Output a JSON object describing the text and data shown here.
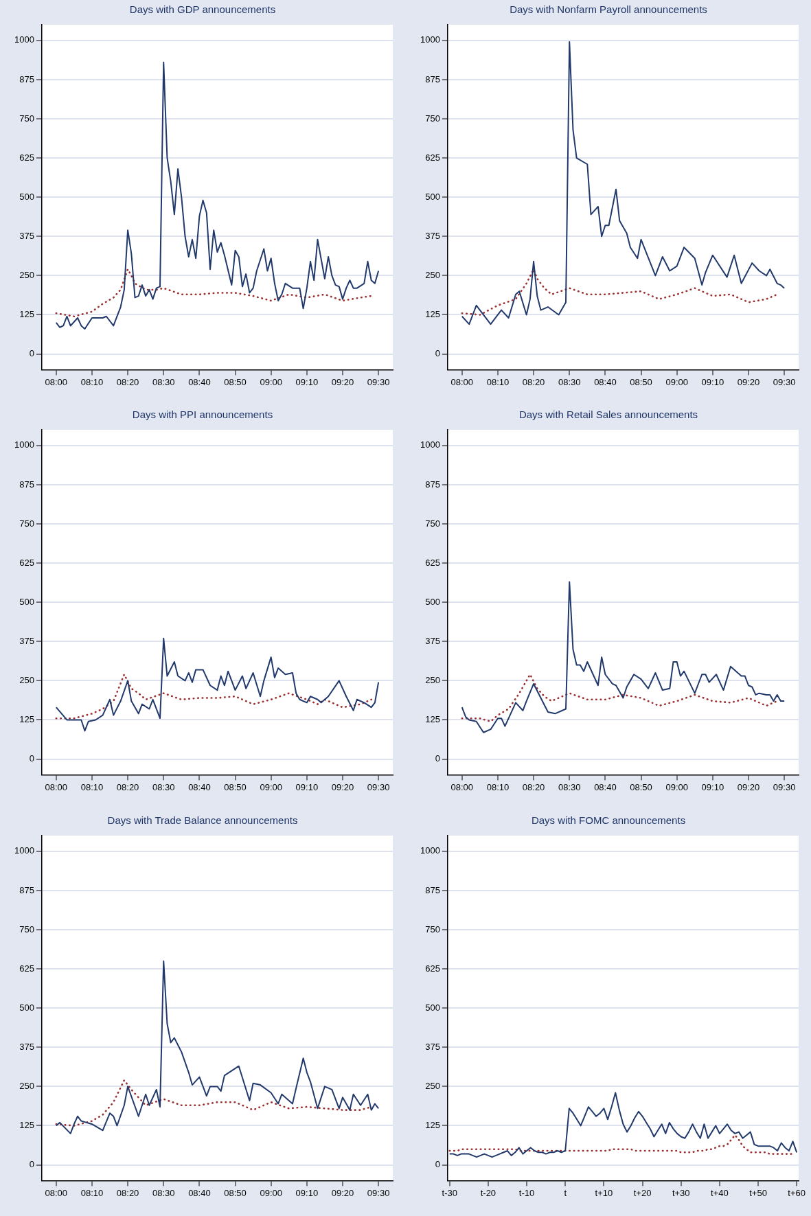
{
  "chart_data": [
    {
      "type": "line",
      "title": "Days with GDP announcements",
      "xlim": [
        7.9333,
        9.5667
      ],
      "ylim": [
        -50,
        1050
      ],
      "xticks": [
        {
          "value": 8,
          "label": "08:00"
        },
        {
          "value": 8.1667,
          "label": "08:10"
        },
        {
          "value": 8.3333,
          "label": "08:20"
        },
        {
          "value": 8.5,
          "label": "08:30"
        },
        {
          "value": 8.6667,
          "label": "08:40"
        },
        {
          "value": 8.8333,
          "label": "08:50"
        },
        {
          "value": 9,
          "label": "09:00"
        },
        {
          "value": 9.1667,
          "label": "09:10"
        },
        {
          "value": 9.3333,
          "label": "09:20"
        },
        {
          "value": 9.5,
          "label": "09:30"
        }
      ],
      "yticks": [
        0,
        125,
        250,
        375,
        500,
        625,
        750,
        875,
        1000
      ],
      "grid": "y",
      "marker": "none",
      "series": [
        {
          "color": "#22396c",
          "line_style": "solid",
          "x": [
            8,
            8.0167,
            8.0333,
            8.05,
            8.0667,
            8.1,
            8.1167,
            8.1333,
            8.1667,
            8.2167,
            8.2333,
            8.2667,
            8.3,
            8.3167,
            8.3333,
            8.35,
            8.3667,
            8.3833,
            8.4,
            8.4167,
            8.4333,
            8.45,
            8.4667,
            8.4833,
            8.5,
            8.5167,
            8.5333,
            8.55,
            8.5667,
            8.5833,
            8.6,
            8.6167,
            8.6333,
            8.65,
            8.6667,
            8.6833,
            8.7,
            8.7167,
            8.7333,
            8.75,
            8.7667,
            8.7833,
            8.8167,
            8.8333,
            8.85,
            8.8667,
            8.8833,
            8.9,
            8.9167,
            8.9333,
            8.9667,
            8.9833,
            9,
            9.0167,
            9.0333,
            9.05,
            9.0667,
            9.1,
            9.1333,
            9.15,
            9.1667,
            9.1833,
            9.2,
            9.2167,
            9.25,
            9.2667,
            9.2833,
            9.3,
            9.3167,
            9.3333,
            9.35,
            9.3667,
            9.3833,
            9.4,
            9.4333,
            9.45,
            9.4667,
            9.4833,
            9.5
          ],
          "values": [
            100,
            85,
            90,
            120,
            90,
            115,
            90,
            80,
            115,
            115,
            120,
            90,
            150,
            205,
            395,
            320,
            180,
            185,
            220,
            185,
            205,
            175,
            210,
            215,
            930,
            625,
            550,
            445,
            590,
            500,
            375,
            310,
            365,
            305,
            440,
            490,
            450,
            270,
            395,
            325,
            355,
            315,
            220,
            330,
            310,
            215,
            255,
            195,
            210,
            265,
            335,
            265,
            305,
            225,
            170,
            190,
            225,
            210,
            210,
            145,
            210,
            295,
            235,
            365,
            240,
            310,
            250,
            220,
            215,
            175,
            210,
            235,
            210,
            210,
            225,
            295,
            235,
            225,
            265
          ]
        },
        {
          "color": "#9b2f2f",
          "line_style": "dotted",
          "x": [
            8,
            8.0833,
            8.1667,
            8.2167,
            8.2667,
            8.3,
            8.3333,
            8.35,
            8.3667,
            8.4167,
            8.4667,
            8.5,
            8.5833,
            8.6667,
            8.75,
            8.8333,
            8.9167,
            9,
            9.0833,
            9.1667,
            9.25,
            9.3333,
            9.4167,
            9.4667
          ],
          "values": [
            130,
            120,
            135,
            160,
            180,
            205,
            270,
            250,
            225,
            205,
            205,
            210,
            190,
            190,
            195,
            195,
            185,
            170,
            190,
            180,
            190,
            170,
            180,
            185
          ]
        }
      ]
    },
    {
      "type": "line",
      "title": "Days with Nonfarm Payroll announcements",
      "xlim": [
        7.9333,
        9.5667
      ],
      "ylim": [
        -50,
        1050
      ],
      "xticks": [
        {
          "value": 8,
          "label": "08:00"
        },
        {
          "value": 8.1667,
          "label": "08:10"
        },
        {
          "value": 8.3333,
          "label": "08:20"
        },
        {
          "value": 8.5,
          "label": "08:30"
        },
        {
          "value": 8.6667,
          "label": "08:40"
        },
        {
          "value": 8.8333,
          "label": "08:50"
        },
        {
          "value": 9,
          "label": "09:00"
        },
        {
          "value": 9.1667,
          "label": "09:10"
        },
        {
          "value": 9.3333,
          "label": "09:20"
        },
        {
          "value": 9.5,
          "label": "09:30"
        }
      ],
      "yticks": [
        0,
        125,
        250,
        375,
        500,
        625,
        750,
        875,
        1000
      ],
      "grid": "y",
      "marker": "none",
      "series": [
        {
          "color": "#22396c",
          "line_style": "solid",
          "x": [
            8,
            8.0333,
            8.0667,
            8.1333,
            8.1667,
            8.1833,
            8.2167,
            8.25,
            8.2667,
            8.3,
            8.3167,
            8.3333,
            8.35,
            8.3667,
            8.4,
            8.45,
            8.4833,
            8.5,
            8.5167,
            8.5333,
            8.5833,
            8.6,
            8.6333,
            8.65,
            8.6667,
            8.6833,
            8.7167,
            8.7333,
            8.7667,
            8.7833,
            8.8167,
            8.8333,
            8.9,
            8.9333,
            8.9667,
            9,
            9.0333,
            9.0833,
            9.1167,
            9.1333,
            9.1667,
            9.2333,
            9.2667,
            9.3,
            9.35,
            9.3833,
            9.4167,
            9.4333,
            9.4667,
            9.4833,
            9.5
          ],
          "values": [
            120,
            95,
            155,
            95,
            125,
            140,
            115,
            190,
            200,
            125,
            175,
            295,
            185,
            140,
            150,
            125,
            165,
            995,
            715,
            625,
            605,
            445,
            470,
            375,
            410,
            410,
            525,
            425,
            385,
            340,
            305,
            365,
            250,
            310,
            265,
            280,
            340,
            305,
            220,
            260,
            315,
            245,
            315,
            225,
            290,
            265,
            250,
            270,
            225,
            220,
            210
          ]
        },
        {
          "color": "#9b2f2f",
          "line_style": "dotted",
          "x": [
            8,
            8.0833,
            8.1667,
            8.25,
            8.3,
            8.3333,
            8.35,
            8.3833,
            8.4167,
            8.5,
            8.5833,
            8.6667,
            8.75,
            8.8333,
            8.9167,
            9,
            9.0833,
            9.1667,
            9.25,
            9.3333,
            9.4167,
            9.4667
          ],
          "values": [
            130,
            125,
            155,
            175,
            225,
            270,
            240,
            210,
            190,
            210,
            190,
            190,
            195,
            200,
            175,
            190,
            210,
            185,
            190,
            165,
            175,
            190
          ]
        }
      ]
    },
    {
      "type": "line",
      "title": "Days with PPI announcements",
      "xlim": [
        7.9333,
        9.5667
      ],
      "ylim": [
        -50,
        1050
      ],
      "xticks": [
        {
          "value": 8,
          "label": "08:00"
        },
        {
          "value": 8.1667,
          "label": "08:10"
        },
        {
          "value": 8.3333,
          "label": "08:20"
        },
        {
          "value": 8.5,
          "label": "08:30"
        },
        {
          "value": 8.6667,
          "label": "08:40"
        },
        {
          "value": 8.8333,
          "label": "08:50"
        },
        {
          "value": 9,
          "label": "09:00"
        },
        {
          "value": 9.1667,
          "label": "09:10"
        },
        {
          "value": 9.3333,
          "label": "09:20"
        },
        {
          "value": 9.5,
          "label": "09:30"
        }
      ],
      "yticks": [
        0,
        125,
        250,
        375,
        500,
        625,
        750,
        875,
        1000
      ],
      "grid": "y",
      "marker": "none",
      "series": [
        {
          "color": "#22396c",
          "line_style": "solid",
          "x": [
            8,
            8.05,
            8.0833,
            8.1167,
            8.1333,
            8.15,
            8.1833,
            8.2167,
            8.25,
            8.2667,
            8.3,
            8.3333,
            8.35,
            8.3833,
            8.4,
            8.4333,
            8.45,
            8.4833,
            8.5,
            8.5167,
            8.55,
            8.5667,
            8.6,
            8.6167,
            8.6333,
            8.65,
            8.6833,
            8.7167,
            8.75,
            8.7667,
            8.7833,
            8.8,
            8.8333,
            8.8667,
            8.8833,
            8.9167,
            8.95,
            8.9667,
            9,
            9.0167,
            9.0333,
            9.0667,
            9.1,
            9.1167,
            9.1333,
            9.1667,
            9.1833,
            9.2167,
            9.2333,
            9.2667,
            9.3167,
            9.35,
            9.3833,
            9.4,
            9.4333,
            9.4667,
            9.4833,
            9.5
          ],
          "values": [
            165,
            125,
            125,
            125,
            90,
            120,
            125,
            140,
            190,
            140,
            185,
            250,
            185,
            145,
            175,
            160,
            190,
            130,
            385,
            265,
            310,
            265,
            250,
            275,
            245,
            285,
            285,
            235,
            220,
            265,
            235,
            280,
            220,
            265,
            225,
            275,
            200,
            250,
            325,
            260,
            290,
            270,
            275,
            210,
            190,
            180,
            200,
            190,
            180,
            200,
            250,
            200,
            155,
            190,
            180,
            165,
            180,
            245
          ]
        },
        {
          "color": "#9b2f2f",
          "line_style": "dotted",
          "x": [
            8,
            8.0833,
            8.1667,
            8.2167,
            8.2667,
            8.3167,
            8.35,
            8.3833,
            8.4167,
            8.5,
            8.5833,
            8.6667,
            8.75,
            8.8333,
            8.9167,
            9,
            9.0833,
            9.1667,
            9.2167,
            9.25,
            9.3333,
            9.4167,
            9.4667
          ],
          "values": [
            130,
            130,
            145,
            160,
            185,
            270,
            225,
            210,
            190,
            210,
            190,
            195,
            195,
            200,
            175,
            190,
            210,
            190,
            175,
            190,
            165,
            175,
            190
          ]
        }
      ]
    },
    {
      "type": "line",
      "title": "Days with Retail Sales announcements",
      "xlim": [
        7.9333,
        9.5667
      ],
      "ylim": [
        -50,
        1050
      ],
      "xticks": [
        {
          "value": 8,
          "label": "08:00"
        },
        {
          "value": 8.1667,
          "label": "08:10"
        },
        {
          "value": 8.3333,
          "label": "08:20"
        },
        {
          "value": 8.5,
          "label": "08:30"
        },
        {
          "value": 8.6667,
          "label": "08:40"
        },
        {
          "value": 8.8333,
          "label": "08:50"
        },
        {
          "value": 9,
          "label": "09:00"
        },
        {
          "value": 9.1667,
          "label": "09:10"
        },
        {
          "value": 9.3333,
          "label": "09:20"
        },
        {
          "value": 9.5,
          "label": "09:30"
        }
      ],
      "yticks": [
        0,
        125,
        250,
        375,
        500,
        625,
        750,
        875,
        1000
      ],
      "grid": "y",
      "marker": "none",
      "series": [
        {
          "color": "#22396c",
          "line_style": "solid",
          "x": [
            8,
            8.0167,
            8.0333,
            8.0667,
            8.1,
            8.1333,
            8.1667,
            8.1833,
            8.2,
            8.25,
            8.2833,
            8.3,
            8.3333,
            8.3667,
            8.4,
            8.4333,
            8.4833,
            8.5,
            8.5167,
            8.5333,
            8.55,
            8.5667,
            8.5833,
            8.6333,
            8.65,
            8.6667,
            8.7,
            8.7167,
            8.75,
            8.7667,
            8.8,
            8.8333,
            8.8667,
            8.9,
            8.9333,
            8.9667,
            8.9833,
            9,
            9.0167,
            9.0333,
            9.0833,
            9.1167,
            9.1333,
            9.15,
            9.1833,
            9.2167,
            9.25,
            9.3,
            9.3167,
            9.3333,
            9.35,
            9.3667,
            9.3833,
            9.4167,
            9.4333,
            9.45,
            9.4667,
            9.4833,
            9.5
          ],
          "values": [
            165,
            135,
            125,
            120,
            85,
            95,
            130,
            130,
            105,
            180,
            155,
            185,
            240,
            195,
            150,
            145,
            160,
            565,
            350,
            300,
            300,
            280,
            310,
            235,
            325,
            270,
            240,
            235,
            195,
            230,
            270,
            255,
            225,
            275,
            220,
            225,
            310,
            310,
            265,
            280,
            210,
            270,
            270,
            245,
            270,
            220,
            295,
            265,
            265,
            235,
            230,
            205,
            210,
            205,
            205,
            185,
            205,
            185,
            185
          ]
        },
        {
          "color": "#9b2f2f",
          "line_style": "dotted",
          "x": [
            8,
            8.0833,
            8.1333,
            8.1667,
            8.2167,
            8.2667,
            8.3167,
            8.35,
            8.3833,
            8.4167,
            8.5,
            8.5833,
            8.6667,
            8.75,
            8.8333,
            8.9167,
            9,
            9.0833,
            9.1667,
            9.25,
            9.3333,
            9.4167,
            9.4667
          ],
          "values": [
            130,
            130,
            120,
            140,
            160,
            210,
            270,
            225,
            200,
            185,
            210,
            190,
            190,
            205,
            195,
            170,
            185,
            205,
            185,
            180,
            195,
            170,
            185
          ]
        }
      ]
    },
    {
      "type": "line",
      "title": "Days with Trade Balance announcements",
      "xlim": [
        7.9333,
        9.5667
      ],
      "ylim": [
        -50,
        1050
      ],
      "xticks": [
        {
          "value": 8,
          "label": "08:00"
        },
        {
          "value": 8.1667,
          "label": "08:10"
        },
        {
          "value": 8.3333,
          "label": "08:20"
        },
        {
          "value": 8.5,
          "label": "08:30"
        },
        {
          "value": 8.6667,
          "label": "08:40"
        },
        {
          "value": 8.8333,
          "label": "08:50"
        },
        {
          "value": 9,
          "label": "09:00"
        },
        {
          "value": 9.1667,
          "label": "09:10"
        },
        {
          "value": 9.3333,
          "label": "09:20"
        },
        {
          "value": 9.5,
          "label": "09:30"
        }
      ],
      "yticks": [
        0,
        125,
        250,
        375,
        500,
        625,
        750,
        875,
        1000
      ],
      "grid": "y",
      "marker": "none",
      "series": [
        {
          "color": "#22396c",
          "line_style": "solid",
          "x": [
            8,
            8.0167,
            8.0667,
            8.0833,
            8.1,
            8.1167,
            8.1667,
            8.2167,
            8.25,
            8.2667,
            8.2833,
            8.3167,
            8.3333,
            8.3833,
            8.4167,
            8.4333,
            8.4667,
            8.4833,
            8.5,
            8.5167,
            8.5333,
            8.55,
            8.5833,
            8.6167,
            8.6333,
            8.6667,
            8.7,
            8.7167,
            8.75,
            8.7667,
            8.7833,
            8.85,
            8.9,
            8.9167,
            8.95,
            9,
            9.0333,
            9.05,
            9.1,
            9.1167,
            9.15,
            9.1667,
            9.1833,
            9.2167,
            9.25,
            9.2833,
            9.3167,
            9.3333,
            9.3667,
            9.3833,
            9.4167,
            9.45,
            9.4667,
            9.4833,
            9.5
          ],
          "values": [
            125,
            135,
            100,
            130,
            155,
            140,
            130,
            110,
            165,
            155,
            125,
            190,
            250,
            155,
            225,
            190,
            240,
            185,
            650,
            450,
            390,
            405,
            360,
            295,
            255,
            280,
            220,
            250,
            250,
            235,
            285,
            315,
            205,
            260,
            255,
            230,
            195,
            225,
            195,
            245,
            340,
            295,
            265,
            180,
            250,
            240,
            180,
            215,
            175,
            225,
            190,
            225,
            175,
            195,
            180
          ]
        },
        {
          "color": "#9b2f2f",
          "line_style": "dotted",
          "x": [
            8,
            8.0833,
            8.1667,
            8.2167,
            8.2667,
            8.3167,
            8.35,
            8.3833,
            8.4167,
            8.5,
            8.5833,
            8.6667,
            8.75,
            8.8333,
            8.9167,
            9,
            9.0833,
            9.1667,
            9.25,
            9.3333,
            9.4167,
            9.4667
          ],
          "values": [
            130,
            125,
            140,
            160,
            200,
            270,
            240,
            215,
            190,
            210,
            190,
            190,
            200,
            200,
            175,
            200,
            180,
            185,
            180,
            175,
            175,
            185
          ]
        }
      ]
    },
    {
      "type": "line",
      "title": "Days with FOMC announcements",
      "categories": [
        "t-30",
        null,
        null,
        null,
        null,
        null,
        null,
        null,
        null,
        null,
        "t-20",
        null,
        null,
        null,
        null,
        null,
        null,
        null,
        null,
        null,
        "t-10",
        null,
        null,
        null,
        null,
        null,
        null,
        null,
        null,
        null,
        "t",
        null,
        null,
        null,
        null,
        null,
        null,
        null,
        null,
        null,
        "t+10",
        null,
        null,
        null,
        null,
        null,
        null,
        null,
        null,
        null,
        "t+20",
        null,
        null,
        null,
        null,
        null,
        null,
        null,
        null,
        null,
        "t+30",
        null,
        null,
        null,
        null,
        null,
        null,
        null,
        null,
        null,
        "t+40",
        null,
        null,
        null,
        null,
        null,
        null,
        null,
        null,
        null,
        "t+50",
        null,
        null,
        null,
        null,
        null,
        null,
        null,
        null,
        null,
        "t+60"
      ],
      "ylim": [
        -50,
        1050
      ],
      "yticks": [
        0,
        125,
        250,
        375,
        500,
        625,
        750,
        875,
        1000
      ],
      "grid": "y",
      "marker": "none",
      "series": [
        {
          "color": "#22396c",
          "line_style": "solid",
          "values": [
            35,
            35,
            30,
            35,
            35,
            35,
            30,
            25,
            30,
            35,
            30,
            25,
            30,
            35,
            40,
            45,
            30,
            40,
            55,
            35,
            45,
            55,
            45,
            40,
            40,
            35,
            40,
            40,
            45,
            40,
            45,
            180,
            165,
            145,
            125,
            155,
            185,
            170,
            155,
            165,
            180,
            145,
            185,
            230,
            175,
            130,
            105,
            125,
            150,
            170,
            155,
            135,
            115,
            90,
            110,
            130,
            100,
            135,
            115,
            100,
            90,
            85,
            105,
            130,
            105,
            85,
            130,
            85,
            105,
            125,
            100,
            115,
            130,
            110,
            100,
            105,
            85,
            95,
            105,
            65,
            60,
            60,
            60,
            60,
            55,
            45,
            70,
            55,
            45,
            75,
            40
          ]
        },
        {
          "color": "#9b2f2f",
          "line_style": "dotted",
          "values": [
            45,
            45,
            45,
            50,
            50,
            50,
            50,
            50,
            50,
            50,
            50,
            50,
            50,
            50,
            50,
            50,
            50,
            50,
            45,
            45,
            45,
            45,
            45,
            45,
            45,
            45,
            45,
            45,
            45,
            45,
            45,
            45,
            45,
            45,
            45,
            45,
            45,
            45,
            45,
            45,
            45,
            45,
            50,
            50,
            50,
            50,
            50,
            50,
            45,
            45,
            45,
            45,
            45,
            45,
            45,
            45,
            45,
            45,
            45,
            45,
            40,
            40,
            40,
            40,
            45,
            45,
            45,
            50,
            50,
            55,
            60,
            60,
            65,
            80,
            95,
            80,
            60,
            50,
            40,
            40,
            40,
            40,
            40,
            35,
            35,
            35,
            35,
            35,
            35,
            35,
            null
          ]
        }
      ]
    }
  ]
}
